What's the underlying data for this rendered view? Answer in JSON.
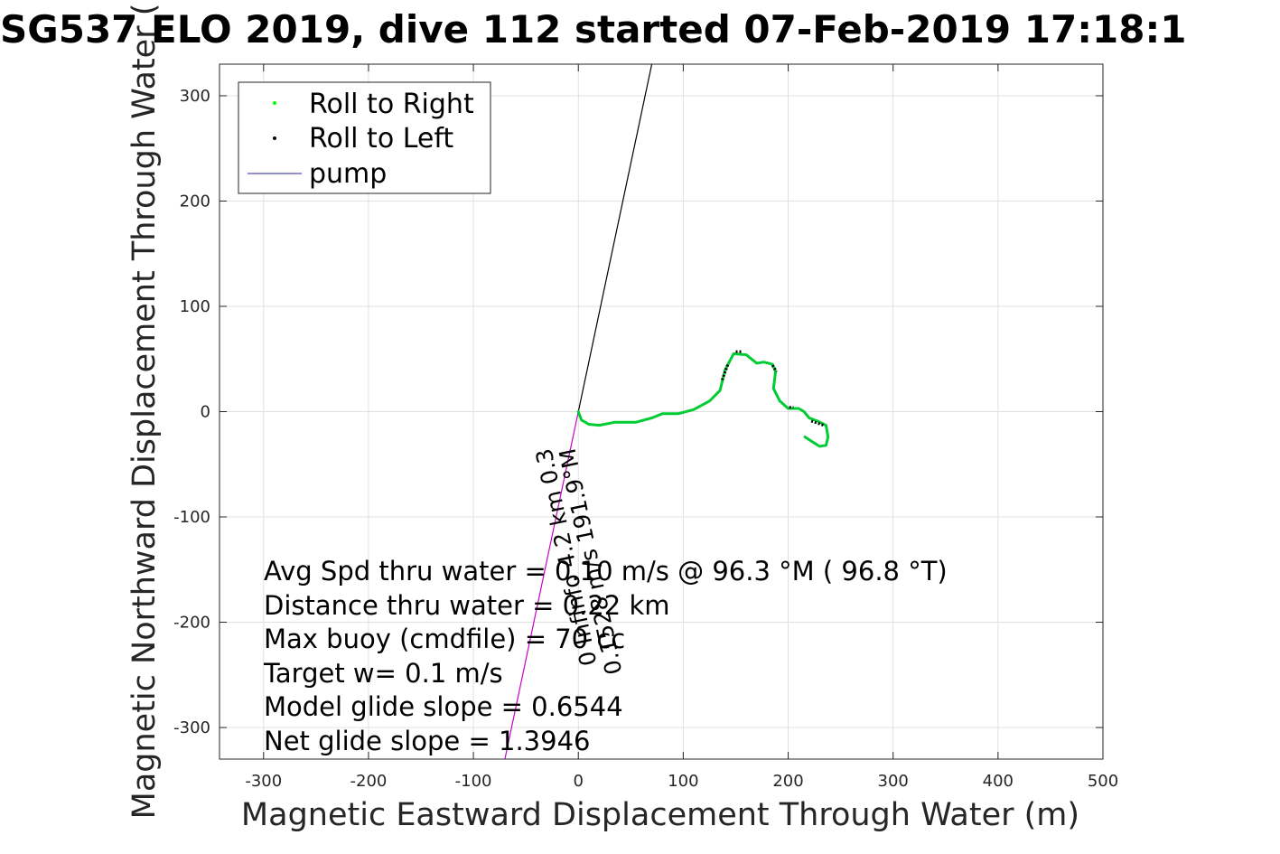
{
  "chart_data": {
    "type": "line",
    "title": "SG537 ELO 2019, dive 112 started 07-Feb-2019 17:18:1",
    "xlabel": "Magnetic Eastward Displacement Through Water (m)",
    "ylabel": "Magnetic Northward Displacement Through Water (",
    "xlim": [
      -342,
      500
    ],
    "ylim": [
      -330,
      330
    ],
    "xticks": [
      -300,
      -200,
      -100,
      0,
      100,
      200,
      300,
      400,
      500
    ],
    "xtick_labels": [
      "-300",
      "-200",
      "-100",
      "0",
      "100",
      "200",
      "300",
      "400",
      "500"
    ],
    "yticks": [
      -300,
      -200,
      -100,
      0,
      100,
      200,
      300
    ],
    "ytick_labels": [
      "-300",
      "-200",
      "-100",
      "0",
      "100",
      "200",
      "300"
    ],
    "grid": true,
    "legend_placement": "top-left",
    "legend": [
      {
        "label": "Roll to Right",
        "color": "#00ff00",
        "marker": "dot"
      },
      {
        "label": "Roll to Left",
        "color": "#000000",
        "marker": "dot"
      },
      {
        "label": "pump",
        "color": "#1f1f9f",
        "marker": "line"
      }
    ],
    "track": {
      "x": [
        0,
        3,
        10,
        20,
        35,
        55,
        70,
        80,
        95,
        110,
        125,
        135,
        140,
        148,
        160,
        170,
        177,
        185,
        188,
        186,
        192,
        200,
        210,
        215,
        220,
        228,
        236,
        238,
        236,
        230,
        222,
        216
      ],
      "y": [
        0,
        -8,
        -12,
        -13,
        -10,
        -10,
        -6,
        -2,
        -2,
        2,
        10,
        20,
        40,
        55,
        54,
        46,
        47,
        45,
        38,
        22,
        10,
        3,
        3,
        0,
        -6,
        -9,
        -13,
        -24,
        -32,
        -33,
        -28,
        -24
      ],
      "color": "#00cc33"
    },
    "roll_left_segments": [
      {
        "x": [
          137,
          143
        ],
        "y": [
          30,
          46
        ]
      },
      {
        "x": [
          150,
          156
        ],
        "y": [
          57,
          57
        ]
      },
      {
        "x": [
          185,
          189
        ],
        "y": [
          44,
          38
        ]
      },
      {
        "x": [
          201,
          205
        ],
        "y": [
          4,
          4
        ]
      },
      {
        "x": [
          222,
          234
        ],
        "y": [
          -9,
          -13
        ]
      }
    ],
    "heading_line": {
      "x": [
        0,
        70
      ],
      "y": [
        0,
        330
      ],
      "color": "#000000"
    },
    "current_line": {
      "x": [
        0,
        -70
      ],
      "y": [
        0,
        -330
      ],
      "color": "#cc00cc"
    },
    "line_label": "0.1528 m/s 191.9°M",
    "extra_label": "0 Infinfo 4.2 km 0.3 ",
    "annotations": [
      "Avg Spd thru water =  0.10 m/s @  96.3 °M ( 96.8 °T)",
      "Distance thru water =  0.22 km",
      "Max buoy (cmdfile) = 70 cc",
      "Target w= 0.1 m/s",
      "Model glide slope = 0.6544",
      "Net glide slope = 1.3946"
    ]
  }
}
